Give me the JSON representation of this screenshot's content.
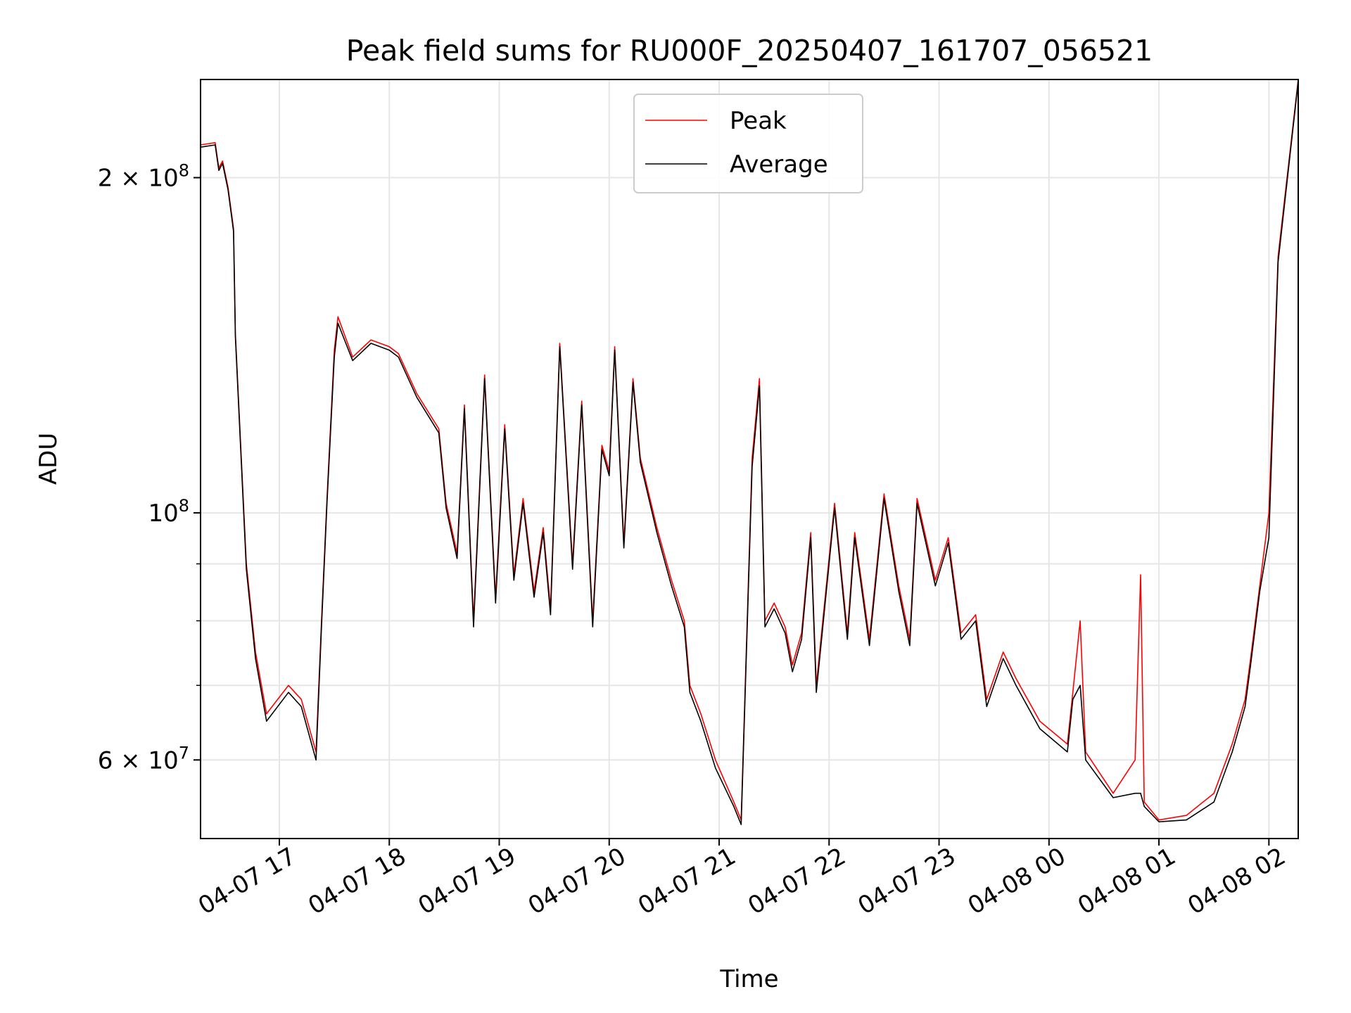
{
  "chart_data": {
    "type": "line",
    "title": "Peak field sums for RU000F_20250407_161707_056521",
    "xlabel": "Time",
    "ylabel": "ADU",
    "yscale": "log",
    "ylim": [
      51000000,
      245000000
    ],
    "xlim": [
      "2025-04-07 16:17",
      "2025-04-08 02:16"
    ],
    "grid": true,
    "legend_placement": "upper center",
    "x_ticks": [
      {
        "t": "2025-04-07 17:00",
        "label": "04-07 17"
      },
      {
        "t": "2025-04-07 18:00",
        "label": "04-07 18"
      },
      {
        "t": "2025-04-07 19:00",
        "label": "04-07 19"
      },
      {
        "t": "2025-04-07 20:00",
        "label": "04-07 20"
      },
      {
        "t": "2025-04-07 21:00",
        "label": "04-07 21"
      },
      {
        "t": "2025-04-07 22:00",
        "label": "04-07 22"
      },
      {
        "t": "2025-04-07 23:00",
        "label": "04-07 23"
      },
      {
        "t": "2025-04-08 00:00",
        "label": "04-08 00"
      },
      {
        "t": "2025-04-08 01:00",
        "label": "04-08 01"
      },
      {
        "t": "2025-04-08 02:00",
        "label": "04-08 02"
      }
    ],
    "y_ticks_labeled": [
      {
        "value": 60000000,
        "mantissa": "6",
        "exponent": "7"
      },
      {
        "value": 100000000,
        "mantissa": "",
        "exponent": "8"
      },
      {
        "value": 200000000,
        "mantissa": "2",
        "exponent": "8"
      }
    ],
    "y_ticks_minor": [
      70000000,
      80000000,
      90000000
    ],
    "series": [
      {
        "name": "Peak",
        "color": "#ff0000",
        "x": [
          "2025-04-07 16:17",
          "2025-04-07 16:25",
          "2025-04-07 16:27",
          "2025-04-07 16:29",
          "2025-04-07 16:32",
          "2025-04-07 16:35",
          "2025-04-07 16:36",
          "2025-04-07 16:42",
          "2025-04-07 16:47",
          "2025-04-07 16:53",
          "2025-04-07 17:05",
          "2025-04-07 17:12",
          "2025-04-07 17:20",
          "2025-04-07 17:23",
          "2025-04-07 17:26",
          "2025-04-07 17:30",
          "2025-04-07 17:32",
          "2025-04-07 17:40",
          "2025-04-07 17:50",
          "2025-04-07 18:00",
          "2025-04-07 18:05",
          "2025-04-07 18:15",
          "2025-04-07 18:27",
          "2025-04-07 18:31",
          "2025-04-07 18:37",
          "2025-04-07 18:41",
          "2025-04-07 18:46",
          "2025-04-07 18:52",
          "2025-04-07 18:58",
          "2025-04-07 19:03",
          "2025-04-07 19:08",
          "2025-04-07 19:13",
          "2025-04-07 19:19",
          "2025-04-07 19:24",
          "2025-04-07 19:28",
          "2025-04-07 19:33",
          "2025-04-07 19:40",
          "2025-04-07 19:45",
          "2025-04-07 19:51",
          "2025-04-07 19:56",
          "2025-04-07 20:00",
          "2025-04-07 20:03",
          "2025-04-07 20:08",
          "2025-04-07 20:13",
          "2025-04-07 20:17",
          "2025-04-07 20:26",
          "2025-04-07 20:34",
          "2025-04-07 20:41",
          "2025-04-07 20:44",
          "2025-04-07 20:50",
          "2025-04-07 20:58",
          "2025-04-07 21:08",
          "2025-04-07 21:12",
          "2025-04-07 21:18",
          "2025-04-07 21:22",
          "2025-04-07 21:25",
          "2025-04-07 21:30",
          "2025-04-07 21:36",
          "2025-04-07 21:40",
          "2025-04-07 21:45",
          "2025-04-07 21:50",
          "2025-04-07 21:53",
          "2025-04-07 22:03",
          "2025-04-07 22:10",
          "2025-04-07 22:14",
          "2025-04-07 22:22",
          "2025-04-07 22:30",
          "2025-04-07 22:38",
          "2025-04-07 22:44",
          "2025-04-07 22:48",
          "2025-04-07 22:58",
          "2025-04-07 23:05",
          "2025-04-07 23:12",
          "2025-04-07 23:20",
          "2025-04-07 23:26",
          "2025-04-07 23:35",
          "2025-04-07 23:42",
          "2025-04-07 23:55",
          "2025-04-08 00:10",
          "2025-04-08 00:13",
          "2025-04-08 00:17",
          "2025-04-08 00:20",
          "2025-04-08 00:35",
          "2025-04-08 00:47",
          "2025-04-08 00:50",
          "2025-04-08 00:52",
          "2025-04-08 01:00",
          "2025-04-08 01:15",
          "2025-04-08 01:30",
          "2025-04-08 01:40",
          "2025-04-08 01:47",
          "2025-04-08 01:50",
          "2025-04-08 01:55",
          "2025-04-08 02:00",
          "2025-04-08 02:05",
          "2025-04-08 02:16"
        ],
        "y": [
          214000000,
          215000000,
          204000000,
          207000000,
          196000000,
          180000000,
          145000000,
          90000000,
          75000000,
          66000000,
          70000000,
          68000000,
          61000000,
          80000000,
          103000000,
          140000000,
          150000000,
          138000000,
          143000000,
          141000000,
          139000000,
          128000000,
          119000000,
          102000000,
          92000000,
          125000000,
          80000000,
          133000000,
          84000000,
          120000000,
          88000000,
          103000000,
          85000000,
          97000000,
          82000000,
          142000000,
          90000000,
          126000000,
          80000000,
          115000000,
          109000000,
          141000000,
          94000000,
          132000000,
          112000000,
          97000000,
          87000000,
          80000000,
          70000000,
          66000000,
          60000000,
          55000000,
          53000000,
          112000000,
          132000000,
          80000000,
          83000000,
          79000000,
          73000000,
          78000000,
          96000000,
          70000000,
          102000000,
          78000000,
          96000000,
          77000000,
          104000000,
          86000000,
          77000000,
          103000000,
          87000000,
          95000000,
          78000000,
          81000000,
          68000000,
          75000000,
          71000000,
          65000000,
          62000000,
          69000000,
          80000000,
          61000000,
          56000000,
          60000000,
          88000000,
          55000000,
          53000000,
          53500000,
          56000000,
          62000000,
          68000000,
          74000000,
          86000000,
          100000000,
          170000000,
          245000000
        ]
      },
      {
        "name": "Average",
        "color": "#000000",
        "x": [
          "2025-04-07 16:17",
          "2025-04-07 16:25",
          "2025-04-07 16:27",
          "2025-04-07 16:29",
          "2025-04-07 16:32",
          "2025-04-07 16:35",
          "2025-04-07 16:36",
          "2025-04-07 16:42",
          "2025-04-07 16:47",
          "2025-04-07 16:53",
          "2025-04-07 17:05",
          "2025-04-07 17:12",
          "2025-04-07 17:20",
          "2025-04-07 17:23",
          "2025-04-07 17:26",
          "2025-04-07 17:30",
          "2025-04-07 17:32",
          "2025-04-07 17:40",
          "2025-04-07 17:50",
          "2025-04-07 18:00",
          "2025-04-07 18:05",
          "2025-04-07 18:15",
          "2025-04-07 18:27",
          "2025-04-07 18:31",
          "2025-04-07 18:37",
          "2025-04-07 18:41",
          "2025-04-07 18:46",
          "2025-04-07 18:52",
          "2025-04-07 18:58",
          "2025-04-07 19:03",
          "2025-04-07 19:08",
          "2025-04-07 19:13",
          "2025-04-07 19:19",
          "2025-04-07 19:24",
          "2025-04-07 19:28",
          "2025-04-07 19:33",
          "2025-04-07 19:40",
          "2025-04-07 19:45",
          "2025-04-07 19:51",
          "2025-04-07 19:56",
          "2025-04-07 20:00",
          "2025-04-07 20:03",
          "2025-04-07 20:08",
          "2025-04-07 20:13",
          "2025-04-07 20:17",
          "2025-04-07 20:26",
          "2025-04-07 20:34",
          "2025-04-07 20:41",
          "2025-04-07 20:44",
          "2025-04-07 20:50",
          "2025-04-07 20:58",
          "2025-04-07 21:08",
          "2025-04-07 21:12",
          "2025-04-07 21:18",
          "2025-04-07 21:22",
          "2025-04-07 21:25",
          "2025-04-07 21:30",
          "2025-04-07 21:36",
          "2025-04-07 21:40",
          "2025-04-07 21:45",
          "2025-04-07 21:50",
          "2025-04-07 21:53",
          "2025-04-07 22:03",
          "2025-04-07 22:10",
          "2025-04-07 22:14",
          "2025-04-07 22:22",
          "2025-04-07 22:30",
          "2025-04-07 22:38",
          "2025-04-07 22:44",
          "2025-04-07 22:48",
          "2025-04-07 22:58",
          "2025-04-07 23:05",
          "2025-04-07 23:12",
          "2025-04-07 23:20",
          "2025-04-07 23:26",
          "2025-04-07 23:35",
          "2025-04-07 23:42",
          "2025-04-07 23:55",
          "2025-04-08 00:10",
          "2025-04-08 00:13",
          "2025-04-08 00:17",
          "2025-04-08 00:20",
          "2025-04-08 00:35",
          "2025-04-08 00:47",
          "2025-04-08 00:50",
          "2025-04-08 00:52",
          "2025-04-08 01:00",
          "2025-04-08 01:15",
          "2025-04-08 01:30",
          "2025-04-08 01:40",
          "2025-04-08 01:47",
          "2025-04-08 01:50",
          "2025-04-08 01:55",
          "2025-04-08 02:00",
          "2025-04-08 02:05",
          "2025-04-08 02:16"
        ],
        "y": [
          213000000,
          214000000,
          203000000,
          206000000,
          195000000,
          179000000,
          144000000,
          89000000,
          74000000,
          65000000,
          69000000,
          67000000,
          60000000,
          79000000,
          102000000,
          138000000,
          148000000,
          137000000,
          142000000,
          140000000,
          138000000,
          127000000,
          118000000,
          101000000,
          91000000,
          124000000,
          79000000,
          132000000,
          83000000,
          119000000,
          87000000,
          102000000,
          84000000,
          96000000,
          81000000,
          141000000,
          89000000,
          125000000,
          79000000,
          114000000,
          108000000,
          140000000,
          93000000,
          131000000,
          111000000,
          96000000,
          86000000,
          79000000,
          69000000,
          65000000,
          59000000,
          54500000,
          52500000,
          110000000,
          130000000,
          79000000,
          82000000,
          78000000,
          72000000,
          77000000,
          95000000,
          69000000,
          101000000,
          77000000,
          95000000,
          76000000,
          103000000,
          85000000,
          76000000,
          102000000,
          86000000,
          94000000,
          77000000,
          80000000,
          67000000,
          74000000,
          70000000,
          64000000,
          61000000,
          68000000,
          70000000,
          60000000,
          55500000,
          56000000,
          56000000,
          54500000,
          52800000,
          53000000,
          55000000,
          61000000,
          67000000,
          73000000,
          85000000,
          95000000,
          168000000,
          244000000
        ]
      }
    ]
  }
}
